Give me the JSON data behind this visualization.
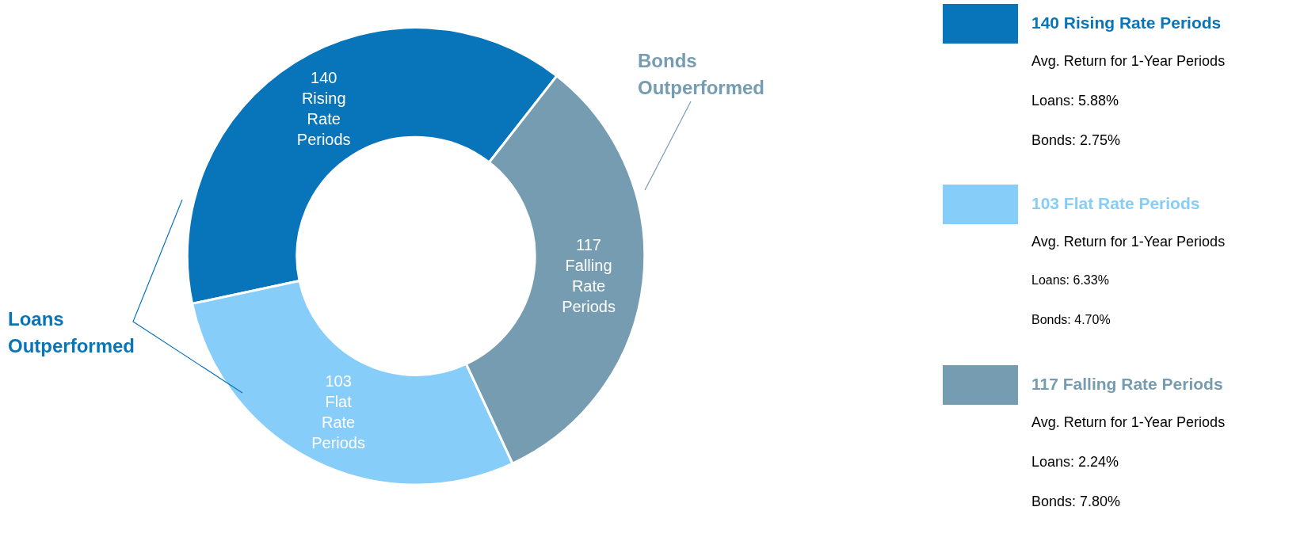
{
  "chart_data": {
    "type": "donut",
    "categories": [
      "140 Rising Rate Periods",
      "103 Flat Rate Periods",
      "117 Falling Rate Periods"
    ],
    "values": [
      140,
      103,
      117
    ],
    "colors": [
      "#0874ba",
      "#87cdf9",
      "#759cb0"
    ],
    "legend": "right",
    "annotations": [
      "Loans Outperformed",
      "Bonds Outperformed",
      "Avg. Return for 1-Year Periods",
      "Loans: 5.88%",
      "Bonds: 2.75%",
      "Avg. Return for 1-Year Periods",
      "Loans: 6.33%",
      "Bonds: 4.70%",
      "Avg. Return for 1-Year Periods",
      "Loans: 2.24%",
      "Bonds: 7.80%"
    ]
  }
}
